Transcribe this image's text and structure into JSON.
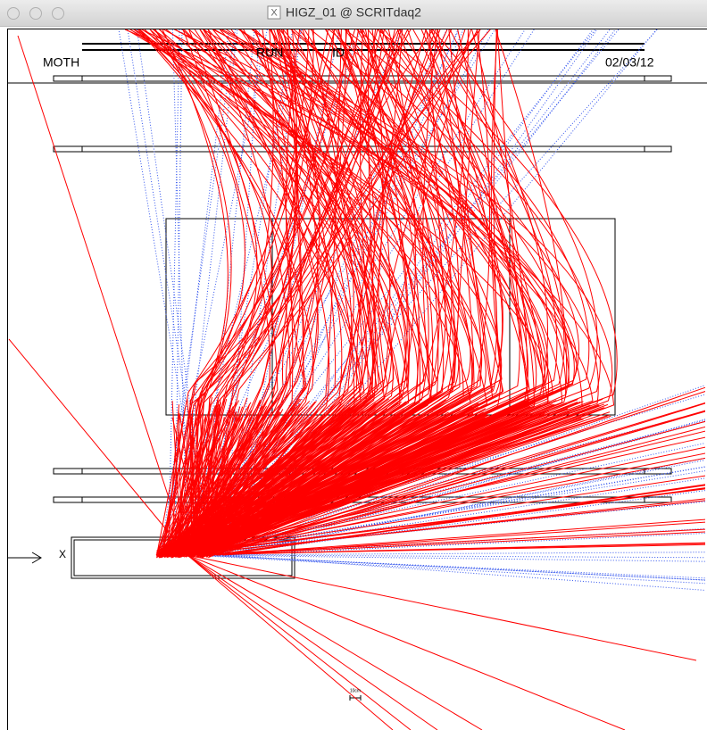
{
  "window": {
    "title": "HIGZ_01 @ SCRITdaq2"
  },
  "header": {
    "volume": "MOTH",
    "run": "RUN",
    "id": "ID",
    "date": "02/03/12"
  },
  "axis": {
    "label": "X"
  },
  "scale": {
    "label": "10cm"
  }
}
